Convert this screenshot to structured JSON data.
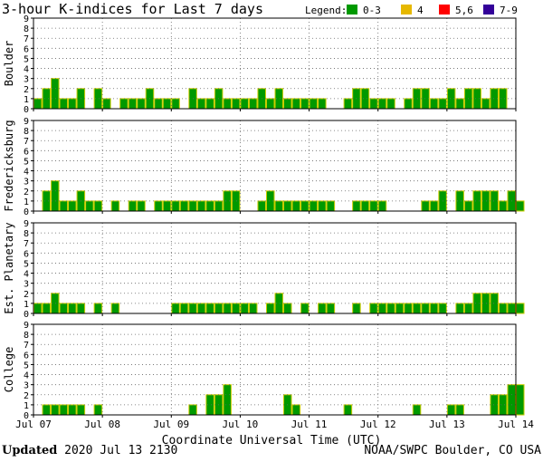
{
  "chart_data": {
    "type": "bar",
    "title": "3-hour K-indices for Last 7 days",
    "xlabel": "Coordinate Universal Time (UTC)",
    "ylim": [
      0,
      9
    ],
    "y_ticks": [
      "0",
      "1",
      "2",
      "3",
      "4",
      "5",
      "6",
      "7",
      "8",
      "9"
    ],
    "x_ticks": [
      "Jul 07",
      "Jul 08",
      "Jul 09",
      "Jul 10",
      "Jul 11",
      "Jul 12",
      "Jul 13",
      "Jul 14"
    ],
    "x_range_days": 7,
    "intervals_per_day": 8,
    "grid": true,
    "legend": {
      "title": "Legend:",
      "position": "top-right",
      "items": [
        {
          "label": "0-3",
          "color": "#009900"
        },
        {
          "label": "4",
          "color": "#e6b800"
        },
        {
          "label": "5,6",
          "color": "#ff0000"
        },
        {
          "label": "7-9",
          "color": "#330099"
        }
      ]
    },
    "bar_outline_color": "#cccc00",
    "panels": [
      {
        "name": "Boulder",
        "values": [
          1,
          2,
          3,
          1,
          1,
          2,
          0,
          2,
          1,
          0,
          1,
          1,
          1,
          2,
          1,
          1,
          1,
          0,
          2,
          1,
          1,
          2,
          1,
          1,
          1,
          1,
          2,
          1,
          2,
          1,
          1,
          1,
          1,
          1,
          0,
          0,
          1,
          2,
          2,
          1,
          1,
          1,
          0,
          1,
          2,
          2,
          1,
          1,
          2,
          1,
          2,
          2,
          1,
          2,
          2,
          0
        ]
      },
      {
        "name": "Fredericksburg",
        "values": [
          0,
          2,
          3,
          1,
          1,
          2,
          1,
          1,
          0,
          1,
          0,
          1,
          1,
          0,
          1,
          1,
          1,
          1,
          1,
          1,
          1,
          1,
          2,
          2,
          0,
          0,
          1,
          2,
          1,
          1,
          1,
          1,
          1,
          1,
          1,
          0,
          0,
          1,
          1,
          1,
          1,
          0,
          0,
          0,
          0,
          1,
          1,
          2,
          0,
          2,
          1,
          2,
          2,
          2,
          1,
          2,
          1,
          0
        ]
      },
      {
        "name": "Est. Planetary",
        "values": [
          1,
          1,
          2,
          1,
          1,
          1,
          0,
          1,
          0,
          1,
          0,
          0,
          0,
          0,
          0,
          0,
          1,
          1,
          1,
          1,
          1,
          1,
          1,
          1,
          1,
          1,
          0,
          1,
          2,
          1,
          0,
          1,
          0,
          1,
          1,
          0,
          0,
          1,
          0,
          1,
          1,
          1,
          1,
          1,
          1,
          1,
          1,
          1,
          0,
          1,
          1,
          2,
          2,
          2,
          1,
          1,
          1,
          0
        ]
      },
      {
        "name": "College",
        "values": [
          0,
          1,
          1,
          1,
          1,
          1,
          0,
          1,
          0,
          0,
          0,
          0,
          0,
          0,
          0,
          0,
          0,
          0,
          1,
          0,
          2,
          2,
          3,
          0,
          0,
          0,
          0,
          0,
          0,
          2,
          1,
          0,
          0,
          0,
          0,
          0,
          1,
          0,
          0,
          0,
          0,
          0,
          0,
          0,
          1,
          0,
          0,
          0,
          1,
          1,
          0,
          0,
          0,
          2,
          2,
          3,
          3,
          0
        ]
      }
    ]
  },
  "footer": {
    "updated_label": "Updated",
    "updated_value": "2020 Jul 13 2130",
    "source": "NOAA/SWPC Boulder, CO USA"
  }
}
